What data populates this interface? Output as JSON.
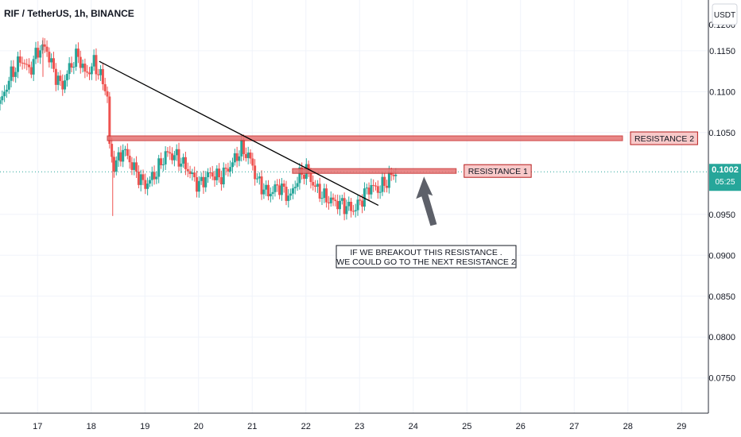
{
  "header": {
    "symbol_title": "RIF / TetherUS, 1h, BINANCE"
  },
  "price_axis": {
    "currency_button": "USDT"
  },
  "colors": {
    "up": "#26a69a",
    "down": "#ef5350",
    "trendline": "#000000",
    "resistance_fill": "#e57373",
    "resistance_label_bg": "#f8c9c9",
    "last_price_bg": "#26a69a",
    "grid": "#e6e6e6"
  },
  "chart_data": {
    "type": "candlestick",
    "timeframe": "1h",
    "xlim": [
      16.3,
      29.5
    ],
    "ylim": [
      0.0707,
      0.1212
    ],
    "x_ticks": [
      {
        "value": 17,
        "label": "17"
      },
      {
        "value": 18,
        "label": "18"
      },
      {
        "value": 19,
        "label": "19"
      },
      {
        "value": 20,
        "label": "20"
      },
      {
        "value": 21,
        "label": "21"
      },
      {
        "value": 22,
        "label": "22"
      },
      {
        "value": 23,
        "label": "23"
      },
      {
        "value": 24,
        "label": "24"
      },
      {
        "value": 25,
        "label": "25"
      },
      {
        "value": 26,
        "label": "26"
      },
      {
        "value": 27,
        "label": "27"
      },
      {
        "value": 28,
        "label": "28"
      },
      {
        "value": 29,
        "label": "29"
      }
    ],
    "y_ticks": [
      {
        "value": 0.115,
        "label": "0.1150"
      },
      {
        "value": 0.11,
        "label": "0.1100"
      },
      {
        "value": 0.105,
        "label": "0.1050"
      },
      {
        "value": 0.095,
        "label": "0.0950"
      },
      {
        "value": 0.09,
        "label": "0.0900"
      },
      {
        "value": 0.085,
        "label": "0.0850"
      },
      {
        "value": 0.08,
        "label": "0.0800"
      },
      {
        "value": 0.075,
        "label": "0.0750"
      }
    ],
    "clipped_top_label": "0.1200",
    "last_price": {
      "value": 0.1002,
      "label": "0.1002",
      "countdown": "05:25"
    },
    "price_path": [
      [
        16.3,
        0.1085
      ],
      [
        16.5,
        0.112
      ],
      [
        16.7,
        0.114
      ],
      [
        16.85,
        0.1125
      ],
      [
        17.0,
        0.115
      ],
      [
        17.15,
        0.1155
      ],
      [
        17.3,
        0.1125
      ],
      [
        17.45,
        0.1105
      ],
      [
        17.6,
        0.113
      ],
      [
        17.75,
        0.1145
      ],
      [
        17.9,
        0.112
      ],
      [
        18.05,
        0.1135
      ],
      [
        18.2,
        0.1115
      ],
      [
        18.3,
        0.1095
      ],
      [
        18.35,
        0.102
      ],
      [
        18.45,
        0.101
      ],
      [
        18.6,
        0.103
      ],
      [
        18.8,
        0.1005
      ],
      [
        19.0,
        0.0985
      ],
      [
        19.2,
        0.1
      ],
      [
        19.4,
        0.1025
      ],
      [
        19.6,
        0.102
      ],
      [
        19.8,
        0.1005
      ],
      [
        20.0,
        0.0985
      ],
      [
        20.2,
        0.1
      ],
      [
        20.4,
        0.0995
      ],
      [
        20.6,
        0.101
      ],
      [
        20.8,
        0.103
      ],
      [
        20.95,
        0.102
      ],
      [
        21.1,
        0.099
      ],
      [
        21.3,
        0.0975
      ],
      [
        21.5,
        0.0985
      ],
      [
        21.7,
        0.097
      ],
      [
        21.85,
        0.0995
      ],
      [
        22.0,
        0.1005
      ],
      [
        22.15,
        0.0985
      ],
      [
        22.35,
        0.097
      ],
      [
        22.55,
        0.0965
      ],
      [
        22.75,
        0.096
      ],
      [
        22.9,
        0.0955
      ],
      [
        23.05,
        0.097
      ],
      [
        23.2,
        0.0985
      ],
      [
        23.35,
        0.098
      ],
      [
        23.5,
        0.099
      ],
      [
        23.6,
        0.0998
      ],
      [
        23.7,
        0.1002
      ]
    ],
    "wicks": [
      {
        "x": 18.4,
        "low": 0.0948,
        "high": 0.1022
      },
      {
        "x": 17.1,
        "low": 0.1118,
        "high": 0.1166
      }
    ],
    "trendline": {
      "x1": 18.15,
      "y1": 0.1137,
      "x2": 23.35,
      "y2": 0.0961
    },
    "resistance_2": {
      "x1": 18.3,
      "x2": 27.9,
      "y": 0.1043,
      "label": "RESISTANCE 2"
    },
    "resistance_1": {
      "x1": 21.75,
      "x2": 24.8,
      "y": 0.1003,
      "label": "RESISTANCE 1"
    },
    "annotation": {
      "lines": [
        "IF WE BREAKOUT THIS RESISTANCE .",
        "WE COULD GO TO THE NEXT RESISTANCE 2"
      ]
    }
  }
}
